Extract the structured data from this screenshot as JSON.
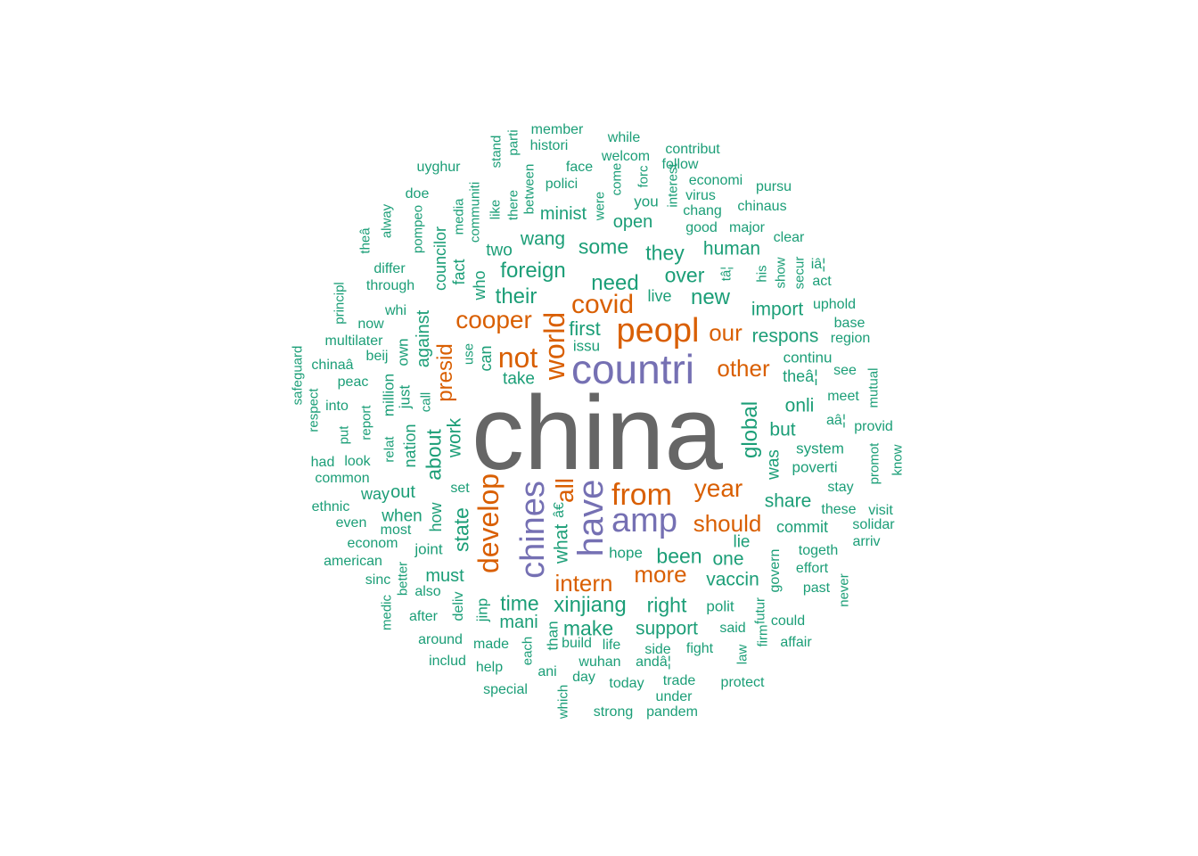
{
  "colors": {
    "tier1": "#666666",
    "tier2": "#7570B3",
    "tier3": "#D95F02",
    "tier4": "#1B9E77"
  },
  "words": [
    {
      "text": "china",
      "tier": 1,
      "freq": 1.0
    },
    {
      "text": "countri",
      "tier": 2,
      "freq": 0.5
    },
    {
      "text": "chines",
      "tier": 2,
      "freq": 0.5
    },
    {
      "text": "have",
      "tier": 2,
      "freq": 0.48
    },
    {
      "text": "amp",
      "tier": 2,
      "freq": 0.45
    },
    {
      "text": "peopl",
      "tier": 3,
      "freq": 0.4
    },
    {
      "text": "from",
      "tier": 3,
      "freq": 0.36
    },
    {
      "text": "not",
      "tier": 3,
      "freq": 0.34
    },
    {
      "text": "world",
      "tier": 3,
      "freq": 0.34
    },
    {
      "text": "develop",
      "tier": 3,
      "freq": 0.34
    },
    {
      "text": "covid",
      "tier": 3,
      "freq": 0.3
    },
    {
      "text": "cooper",
      "tier": 3,
      "freq": 0.28
    },
    {
      "text": "year",
      "tier": 3,
      "freq": 0.28
    },
    {
      "text": "all",
      "tier": 3,
      "freq": 0.27
    },
    {
      "text": "intern",
      "tier": 3,
      "freq": 0.27
    },
    {
      "text": "more",
      "tier": 3,
      "freq": 0.27
    },
    {
      "text": "should",
      "tier": 3,
      "freq": 0.27
    },
    {
      "text": "other",
      "tier": 3,
      "freq": 0.27
    },
    {
      "text": "our",
      "tier": 3,
      "freq": 0.27
    },
    {
      "text": "presid",
      "tier": 3,
      "freq": 0.26
    },
    {
      "text": "foreign",
      "tier": 4,
      "freq": 0.2
    },
    {
      "text": "need",
      "tier": 4,
      "freq": 0.2
    },
    {
      "text": "new",
      "tier": 4,
      "freq": 0.2
    },
    {
      "text": "xinjiang",
      "tier": 4,
      "freq": 0.2
    },
    {
      "text": "global",
      "tier": 4,
      "freq": 0.2
    },
    {
      "text": "their",
      "tier": 4,
      "freq": 0.19
    },
    {
      "text": "some",
      "tier": 4,
      "freq": 0.19
    },
    {
      "text": "over",
      "tier": 4,
      "freq": 0.19
    },
    {
      "text": "they",
      "tier": 4,
      "freq": 0.19
    },
    {
      "text": "time",
      "tier": 4,
      "freq": 0.19
    },
    {
      "text": "make",
      "tier": 4,
      "freq": 0.19
    },
    {
      "text": "right",
      "tier": 4,
      "freq": 0.19
    },
    {
      "text": "about",
      "tier": 4,
      "freq": 0.19
    },
    {
      "text": "state",
      "tier": 4,
      "freq": 0.19
    },
    {
      "text": "been",
      "tier": 4,
      "freq": 0.18
    },
    {
      "text": "first",
      "tier": 4,
      "freq": 0.18
    },
    {
      "text": "human",
      "tier": 4,
      "freq": 0.17
    },
    {
      "text": "wang",
      "tier": 4,
      "freq": 0.17
    },
    {
      "text": "work",
      "tier": 4,
      "freq": 0.17
    },
    {
      "text": "vaccin",
      "tier": 4,
      "freq": 0.17
    },
    {
      "text": "support",
      "tier": 4,
      "freq": 0.17
    },
    {
      "text": "share",
      "tier": 4,
      "freq": 0.17
    },
    {
      "text": "onli",
      "tier": 4,
      "freq": 0.17
    },
    {
      "text": "but",
      "tier": 4,
      "freq": 0.17
    },
    {
      "text": "import",
      "tier": 4,
      "freq": 0.17
    },
    {
      "text": "respons",
      "tier": 4,
      "freq": 0.17
    },
    {
      "text": "one",
      "tier": 4,
      "freq": 0.17
    },
    {
      "text": "what",
      "tier": 4,
      "freq": 0.17
    },
    {
      "text": "must",
      "tier": 4,
      "freq": 0.16
    },
    {
      "text": "mani",
      "tier": 4,
      "freq": 0.16
    },
    {
      "text": "against",
      "tier": 4,
      "freq": 0.16
    },
    {
      "text": "open",
      "tier": 4,
      "freq": 0.16
    },
    {
      "text": "minist",
      "tier": 4,
      "freq": 0.16
    },
    {
      "text": "out",
      "tier": 4,
      "freq": 0.16
    },
    {
      "text": "when",
      "tier": 4,
      "freq": 0.15
    },
    {
      "text": "lie",
      "tier": 4,
      "freq": 0.15
    },
    {
      "text": "was",
      "tier": 4,
      "freq": 0.15
    },
    {
      "text": "two",
      "tier": 4,
      "freq": 0.15
    },
    {
      "text": "take",
      "tier": 4,
      "freq": 0.15
    },
    {
      "text": "commit",
      "tier": 4,
      "freq": 0.14
    },
    {
      "text": "who",
      "tier": 4,
      "freq": 0.14
    },
    {
      "text": "councilor",
      "tier": 4,
      "freq": 0.14
    },
    {
      "text": "can",
      "tier": 4,
      "freq": 0.14
    },
    {
      "text": "fact",
      "tier": 4,
      "freq": 0.14
    },
    {
      "text": "nation",
      "tier": 4,
      "freq": 0.14
    },
    {
      "text": "way",
      "tier": 4,
      "freq": 0.14
    },
    {
      "text": "how",
      "tier": 4,
      "freq": 0.14
    },
    {
      "text": "live",
      "tier": 4,
      "freq": 0.14
    },
    {
      "text": "theâ¦",
      "tier": 4,
      "freq": 0.14
    },
    {
      "text": "continu",
      "tier": 4,
      "freq": 0.13
    },
    {
      "text": "system",
      "tier": 4,
      "freq": 0.13
    },
    {
      "text": "poverti",
      "tier": 4,
      "freq": 0.13
    },
    {
      "text": "polit",
      "tier": 4,
      "freq": 0.13
    },
    {
      "text": "just",
      "tier": 4,
      "freq": 0.13
    },
    {
      "text": "million",
      "tier": 4,
      "freq": 0.13
    },
    {
      "text": "own",
      "tier": 4,
      "freq": 0.13
    },
    {
      "text": "jinp",
      "tier": 4,
      "freq": 0.13
    },
    {
      "text": "than",
      "tier": 4,
      "freq": 0.13
    },
    {
      "text": "joint",
      "tier": 4,
      "freq": 0.13
    },
    {
      "text": "hope",
      "tier": 4,
      "freq": 0.13
    },
    {
      "text": "you",
      "tier": 4,
      "freq": 0.13
    },
    {
      "text": "issu",
      "tier": 4,
      "freq": 0.13
    },
    {
      "text": "govern",
      "tier": 4,
      "freq": 0.12
    },
    {
      "text": "deliv",
      "tier": 4,
      "freq": 0.12
    },
    {
      "text": "â€",
      "tier": 4,
      "freq": 0.12
    },
    {
      "text": "member",
      "tier": 4,
      "freq": 0.11
    },
    {
      "text": "histori",
      "tier": 4,
      "freq": 0.11
    },
    {
      "text": "uyghur",
      "tier": 4,
      "freq": 0.11
    },
    {
      "text": "face",
      "tier": 4,
      "freq": 0.11
    },
    {
      "text": "polici",
      "tier": 4,
      "freq": 0.11
    },
    {
      "text": "while",
      "tier": 4,
      "freq": 0.11
    },
    {
      "text": "welcom",
      "tier": 4,
      "freq": 0.11
    },
    {
      "text": "contribut",
      "tier": 4,
      "freq": 0.11
    },
    {
      "text": "follow",
      "tier": 4,
      "freq": 0.11
    },
    {
      "text": "economi",
      "tier": 4,
      "freq": 0.11
    },
    {
      "text": "virus",
      "tier": 4,
      "freq": 0.11
    },
    {
      "text": "chang",
      "tier": 4,
      "freq": 0.11
    },
    {
      "text": "good",
      "tier": 4,
      "freq": 0.11
    },
    {
      "text": "major",
      "tier": 4,
      "freq": 0.11
    },
    {
      "text": "pursu",
      "tier": 4,
      "freq": 0.11
    },
    {
      "text": "chinaus",
      "tier": 4,
      "freq": 0.11
    },
    {
      "text": "clear",
      "tier": 4,
      "freq": 0.11
    },
    {
      "text": "iâ¦",
      "tier": 4,
      "freq": 0.11
    },
    {
      "text": "act",
      "tier": 4,
      "freq": 0.11
    },
    {
      "text": "uphold",
      "tier": 4,
      "freq": 0.11
    },
    {
      "text": "base",
      "tier": 4,
      "freq": 0.11
    },
    {
      "text": "region",
      "tier": 4,
      "freq": 0.11
    },
    {
      "text": "see",
      "tier": 4,
      "freq": 0.11
    },
    {
      "text": "meet",
      "tier": 4,
      "freq": 0.11
    },
    {
      "text": "aâ¦",
      "tier": 4,
      "freq": 0.11
    },
    {
      "text": "provid",
      "tier": 4,
      "freq": 0.11
    },
    {
      "text": "stay",
      "tier": 4,
      "freq": 0.11
    },
    {
      "text": "these",
      "tier": 4,
      "freq": 0.11
    },
    {
      "text": "visit",
      "tier": 4,
      "freq": 0.11
    },
    {
      "text": "solidar",
      "tier": 4,
      "freq": 0.11
    },
    {
      "text": "arriv",
      "tier": 4,
      "freq": 0.11
    },
    {
      "text": "togeth",
      "tier": 4,
      "freq": 0.11
    },
    {
      "text": "effort",
      "tier": 4,
      "freq": 0.11
    },
    {
      "text": "past",
      "tier": 4,
      "freq": 0.11
    },
    {
      "text": "could",
      "tier": 4,
      "freq": 0.11
    },
    {
      "text": "affair",
      "tier": 4,
      "freq": 0.11
    },
    {
      "text": "said",
      "tier": 4,
      "freq": 0.11
    },
    {
      "text": "fight",
      "tier": 4,
      "freq": 0.11
    },
    {
      "text": "protect",
      "tier": 4,
      "freq": 0.11
    },
    {
      "text": "trade",
      "tier": 4,
      "freq": 0.11
    },
    {
      "text": "under",
      "tier": 4,
      "freq": 0.11
    },
    {
      "text": "pandem",
      "tier": 4,
      "freq": 0.11
    },
    {
      "text": "strong",
      "tier": 4,
      "freq": 0.11
    },
    {
      "text": "today",
      "tier": 4,
      "freq": 0.11
    },
    {
      "text": "day",
      "tier": 4,
      "freq": 0.11
    },
    {
      "text": "wuhan",
      "tier": 4,
      "freq": 0.11
    },
    {
      "text": "andâ¦",
      "tier": 4,
      "freq": 0.11
    },
    {
      "text": "side",
      "tier": 4,
      "freq": 0.11
    },
    {
      "text": "life",
      "tier": 4,
      "freq": 0.11
    },
    {
      "text": "build",
      "tier": 4,
      "freq": 0.11
    },
    {
      "text": "ani",
      "tier": 4,
      "freq": 0.11
    },
    {
      "text": "made",
      "tier": 4,
      "freq": 0.11
    },
    {
      "text": "help",
      "tier": 4,
      "freq": 0.11
    },
    {
      "text": "special",
      "tier": 4,
      "freq": 0.11
    },
    {
      "text": "around",
      "tier": 4,
      "freq": 0.11
    },
    {
      "text": "includ",
      "tier": 4,
      "freq": 0.11
    },
    {
      "text": "after",
      "tier": 4,
      "freq": 0.11
    },
    {
      "text": "also",
      "tier": 4,
      "freq": 0.11
    },
    {
      "text": "sinc",
      "tier": 4,
      "freq": 0.11
    },
    {
      "text": "american",
      "tier": 4,
      "freq": 0.11
    },
    {
      "text": "econom",
      "tier": 4,
      "freq": 0.11
    },
    {
      "text": "most",
      "tier": 4,
      "freq": 0.11
    },
    {
      "text": "even",
      "tier": 4,
      "freq": 0.11
    },
    {
      "text": "ethnic",
      "tier": 4,
      "freq": 0.11
    },
    {
      "text": "common",
      "tier": 4,
      "freq": 0.11
    },
    {
      "text": "had",
      "tier": 4,
      "freq": 0.11
    },
    {
      "text": "look",
      "tier": 4,
      "freq": 0.11
    },
    {
      "text": "into",
      "tier": 4,
      "freq": 0.11
    },
    {
      "text": "peac",
      "tier": 4,
      "freq": 0.11
    },
    {
      "text": "chinaâ",
      "tier": 4,
      "freq": 0.11
    },
    {
      "text": "beij",
      "tier": 4,
      "freq": 0.11
    },
    {
      "text": "multilater",
      "tier": 4,
      "freq": 0.11
    },
    {
      "text": "now",
      "tier": 4,
      "freq": 0.11
    },
    {
      "text": "whi",
      "tier": 4,
      "freq": 0.11
    },
    {
      "text": "through",
      "tier": 4,
      "freq": 0.11
    },
    {
      "text": "differ",
      "tier": 4,
      "freq": 0.11
    },
    {
      "text": "doe",
      "tier": 4,
      "freq": 0.11
    },
    {
      "text": "set",
      "tier": 4,
      "freq": 0.11
    },
    {
      "text": "stand",
      "tier": 4,
      "freq": 0.1
    },
    {
      "text": "parti",
      "tier": 4,
      "freq": 0.1
    },
    {
      "text": "between",
      "tier": 4,
      "freq": 0.1
    },
    {
      "text": "there",
      "tier": 4,
      "freq": 0.1
    },
    {
      "text": "like",
      "tier": 4,
      "freq": 0.1
    },
    {
      "text": "communiti",
      "tier": 4,
      "freq": 0.1
    },
    {
      "text": "media",
      "tier": 4,
      "freq": 0.1
    },
    {
      "text": "pompeo",
      "tier": 4,
      "freq": 0.1
    },
    {
      "text": "alway",
      "tier": 4,
      "freq": 0.1
    },
    {
      "text": "theâ",
      "tier": 4,
      "freq": 0.1
    },
    {
      "text": "principl",
      "tier": 4,
      "freq": 0.1
    },
    {
      "text": "safeguard",
      "tier": 4,
      "freq": 0.1
    },
    {
      "text": "respect",
      "tier": 4,
      "freq": 0.1
    },
    {
      "text": "put",
      "tier": 4,
      "freq": 0.1
    },
    {
      "text": "report",
      "tier": 4,
      "freq": 0.1
    },
    {
      "text": "relat",
      "tier": 4,
      "freq": 0.1
    },
    {
      "text": "call",
      "tier": 4,
      "freq": 0.1
    },
    {
      "text": "use",
      "tier": 4,
      "freq": 0.1
    },
    {
      "text": "medic",
      "tier": 4,
      "freq": 0.1
    },
    {
      "text": "better",
      "tier": 4,
      "freq": 0.1
    },
    {
      "text": "each",
      "tier": 4,
      "freq": 0.1
    },
    {
      "text": "which",
      "tier": 4,
      "freq": 0.1
    },
    {
      "text": "were",
      "tier": 4,
      "freq": 0.1
    },
    {
      "text": "come",
      "tier": 4,
      "freq": 0.1
    },
    {
      "text": "forc",
      "tier": 4,
      "freq": 0.1
    },
    {
      "text": "interest",
      "tier": 4,
      "freq": 0.1
    },
    {
      "text": "tâ¦",
      "tier": 4,
      "freq": 0.1
    },
    {
      "text": "his",
      "tier": 4,
      "freq": 0.1
    },
    {
      "text": "show",
      "tier": 4,
      "freq": 0.1
    },
    {
      "text": "secur",
      "tier": 4,
      "freq": 0.1
    },
    {
      "text": "mutual",
      "tier": 4,
      "freq": 0.1
    },
    {
      "text": "know",
      "tier": 4,
      "freq": 0.1
    },
    {
      "text": "promot",
      "tier": 4,
      "freq": 0.1
    },
    {
      "text": "never",
      "tier": 4,
      "freq": 0.1
    },
    {
      "text": "futur",
      "tier": 4,
      "freq": 0.1
    },
    {
      "text": "firm",
      "tier": 4,
      "freq": 0.1
    },
    {
      "text": "law",
      "tier": 4,
      "freq": 0.1
    }
  ]
}
